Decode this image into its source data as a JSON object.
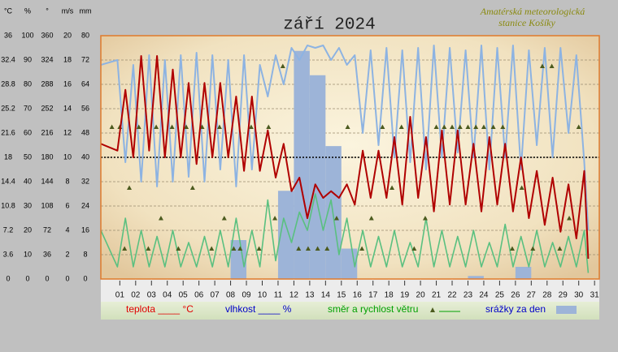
{
  "chart_data": {
    "type": "line",
    "title": "září 2024",
    "watermark": [
      "Amatérská meteorologická",
      "stanice Košíky"
    ],
    "xlim": [
      -0.2,
      31.3
    ],
    "xticks": [
      {
        "value": 1,
        "label": "01"
      },
      {
        "value": 2,
        "label": "02"
      },
      {
        "value": 3,
        "label": "03"
      },
      {
        "value": 4,
        "label": "04"
      },
      {
        "value": 5,
        "label": "05"
      },
      {
        "value": 6,
        "label": "06"
      },
      {
        "value": 7,
        "label": "07"
      },
      {
        "value": 8,
        "label": "08"
      },
      {
        "value": 9,
        "label": "09"
      },
      {
        "value": 10,
        "label": "10"
      },
      {
        "value": 11,
        "label": "11"
      },
      {
        "value": 12,
        "label": "12"
      },
      {
        "value": 13,
        "label": "13"
      },
      {
        "value": 14,
        "label": "14"
      },
      {
        "value": 15,
        "label": "15"
      },
      {
        "value": 16,
        "label": "16"
      },
      {
        "value": 17,
        "label": "17"
      },
      {
        "value": 18,
        "label": "18"
      },
      {
        "value": 19,
        "label": "19"
      },
      {
        "value": 20,
        "label": "20"
      },
      {
        "value": 21,
        "label": "21"
      },
      {
        "value": 22,
        "label": "22"
      },
      {
        "value": 23,
        "label": "23"
      },
      {
        "value": 24,
        "label": "24"
      },
      {
        "value": 25,
        "label": "25"
      },
      {
        "value": 26,
        "label": "26"
      },
      {
        "value": 27,
        "label": "27"
      },
      {
        "value": 28,
        "label": "28"
      },
      {
        "value": 29,
        "label": "29"
      },
      {
        "value": 30,
        "label": "30"
      },
      {
        "value": 31,
        "label": "31"
      }
    ],
    "y_axes": [
      {
        "label": "°C",
        "ylim": [
          0,
          36
        ],
        "yticks": [
          0,
          3.6,
          7.2,
          10.8,
          14.4,
          18,
          21.6,
          25.2,
          28.8,
          32.4,
          36
        ]
      },
      {
        "label": "%",
        "ylim": [
          0,
          100
        ],
        "yticks": [
          0,
          10,
          20,
          30,
          40,
          50,
          60,
          70,
          80,
          90,
          100
        ]
      },
      {
        "label": "°",
        "ylim": [
          0,
          360
        ],
        "yticks": [
          0,
          36,
          72,
          108,
          144,
          180,
          216,
          252,
          288,
          324,
          360
        ]
      },
      {
        "label": "m/s",
        "ylim": [
          0,
          20
        ],
        "yticks": [
          0,
          2,
          4,
          6,
          8,
          10,
          12,
          14,
          16,
          18,
          20
        ]
      },
      {
        "label": "mm",
        "ylim": [
          0,
          80
        ],
        "yticks": [
          0,
          8,
          16,
          24,
          32,
          40,
          48,
          56,
          64,
          72,
          80
        ]
      }
    ],
    "grid": true,
    "reference_line": 18,
    "x": [
      -0.2,
      0.85,
      1.35,
      1.85,
      2.35,
      2.85,
      3.35,
      3.85,
      4.35,
      4.85,
      5.35,
      5.85,
      6.35,
      6.85,
      7.35,
      7.85,
      8.35,
      8.85,
      9.35,
      9.85,
      10.35,
      10.85,
      11.35,
      11.85,
      12.35,
      12.85,
      13.35,
      13.85,
      14.35,
      14.85,
      15.35,
      15.85,
      16.35,
      16.85,
      17.35,
      17.85,
      18.35,
      18.85,
      19.35,
      19.85,
      20.35,
      20.85,
      21.35,
      21.85,
      22.35,
      22.85,
      23.35,
      23.85,
      24.35,
      24.85,
      25.35,
      25.85,
      26.35,
      26.85,
      27.35,
      27.85,
      28.35,
      28.85,
      29.35,
      29.85,
      30.35,
      30.6
    ],
    "series": [
      {
        "name": "teplota ____ °C",
        "color": "#b00000",
        "text_color": "#e00000",
        "axis": 0,
        "values": [
          20,
          19,
          28,
          18,
          33,
          19,
          33,
          18,
          31,
          18,
          29,
          17,
          29,
          18,
          29,
          18,
          27,
          16,
          27,
          16,
          22,
          15,
          20,
          13,
          15,
          9,
          14,
          12,
          13,
          12,
          14,
          11,
          19,
          12,
          19,
          12,
          21,
          11,
          24,
          12,
          21,
          10,
          22,
          11,
          22,
          11,
          20,
          10,
          21,
          11,
          20,
          10,
          18,
          9,
          16,
          8,
          15,
          7,
          14,
          6,
          16,
          3
        ]
      },
      {
        "name": "vlhkost ____ %",
        "color": "#8db3e2",
        "text_color": "#0000c8",
        "axis": 1,
        "values": [
          88,
          90,
          48,
          88,
          40,
          92,
          38,
          90,
          40,
          92,
          42,
          93,
          40,
          92,
          45,
          90,
          38,
          92,
          45,
          88,
          75,
          92,
          80,
          95,
          90,
          96,
          95,
          96,
          90,
          95,
          88,
          92,
          60,
          94,
          55,
          95,
          50,
          94,
          48,
          95,
          45,
          96,
          50,
          95,
          52,
          94,
          50,
          96,
          45,
          95,
          50,
          96,
          45,
          94,
          55,
          95,
          50,
          95,
          60,
          92,
          48,
          20
        ]
      },
      {
        "name": "směr a rychlost větru",
        "color": "#5ac080",
        "text_color": "#00a000",
        "axis": 3,
        "values": [
          4,
          1,
          5,
          1,
          4,
          1,
          3.5,
          1,
          4,
          1,
          3,
          1,
          3.5,
          1,
          4,
          1,
          5,
          1,
          4,
          1,
          6.5,
          1.5,
          5,
          3,
          5.5,
          4,
          7,
          4,
          6.5,
          2,
          5,
          1,
          4,
          1,
          3.5,
          1,
          4,
          1,
          3,
          1,
          5,
          1,
          4,
          1,
          3.5,
          1,
          4,
          1,
          3,
          1,
          4.5,
          1,
          3.5,
          1,
          4,
          1,
          3,
          1,
          3.5,
          1,
          4,
          0.5
        ]
      }
    ],
    "wind_direction": {
      "type": "scatter",
      "color": "#4b5a1e",
      "axis": 2,
      "x": [
        0.5,
        1.0,
        1.3,
        1.6,
        2.2,
        2.8,
        3.3,
        3.6,
        4.3,
        4.7,
        5.2,
        5.6,
        6.2,
        6.8,
        7.3,
        7.6,
        8.2,
        8.6,
        9.3,
        9.8,
        10.4,
        10.8,
        11.3,
        12.3,
        12.9,
        13.5,
        14.1,
        14.7,
        15.4,
        16.3,
        16.9,
        17.6,
        18.2,
        18.8,
        19.6,
        20.3,
        21.0,
        21.5,
        22.0,
        22.5,
        23.0,
        23.5,
        24.0,
        24.6,
        25.2,
        25.8,
        26.4,
        27.1,
        27.7,
        28.3,
        28.8,
        29.4,
        30.0
      ],
      "values": [
        225,
        225,
        45,
        135,
        225,
        45,
        225,
        90,
        225,
        45,
        225,
        135,
        225,
        45,
        225,
        90,
        45,
        45,
        225,
        45,
        225,
        90,
        315,
        45,
        45,
        45,
        45,
        90,
        225,
        45,
        90,
        225,
        135,
        225,
        45,
        90,
        225,
        225,
        225,
        225,
        225,
        225,
        225,
        225,
        225,
        45,
        135,
        45,
        315,
        315,
        45,
        90,
        225
      ]
    },
    "precipitation": {
      "type": "bar",
      "name": "srážky za den",
      "color": "#9db4d8",
      "text_color": "#0000c8",
      "axis": 4,
      "x": [
        8.5,
        11.5,
        12.5,
        13.5,
        14.5,
        15.5,
        23.5,
        26.5
      ],
      "values": [
        12.8,
        29,
        75,
        67,
        43.7,
        10,
        1,
        4
      ]
    }
  }
}
